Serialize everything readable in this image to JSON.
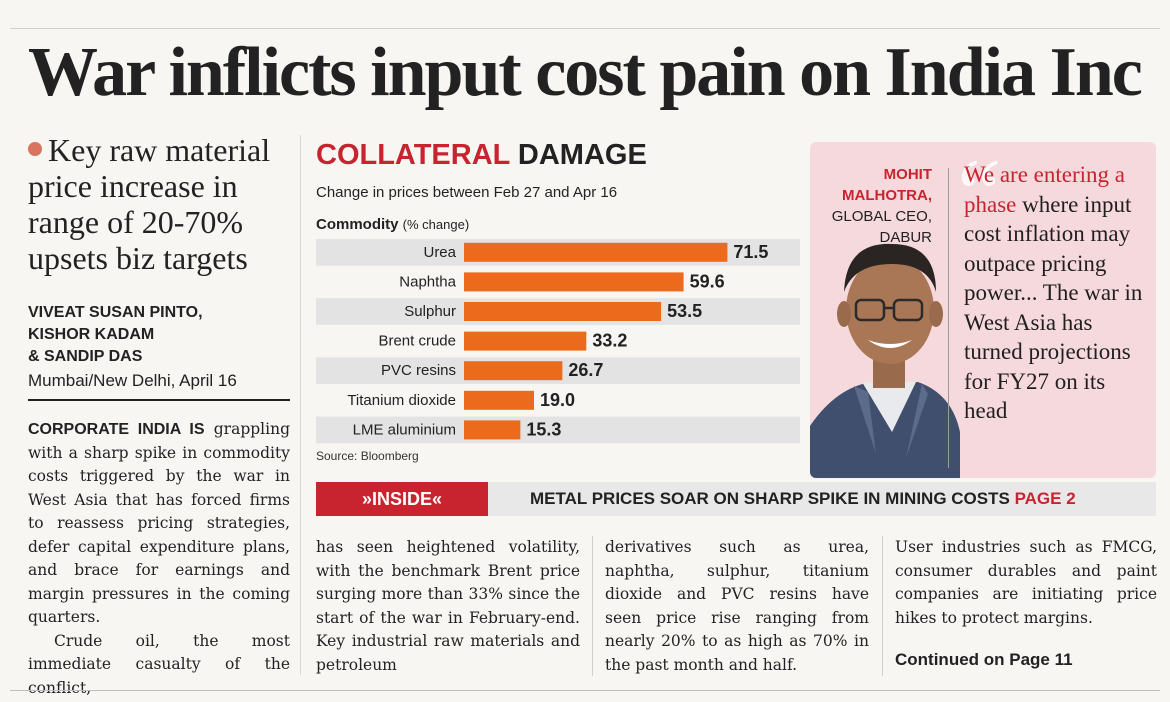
{
  "headline": "War inflicts input cost pain on India Inc",
  "deck": "Key raw material price increase in range of 20-70% upsets biz targets",
  "byline": [
    "VIVEAT SUSAN PINTO,",
    "KISHOR KADAM",
    "& SANDIP DAS"
  ],
  "dateline": "Mumbai/New Delhi, April 16",
  "chart": {
    "title_red": "COLLATERAL",
    "title_dark": "DAMAGE",
    "subtitle": "Change in prices between Feb 27 and Apr 16",
    "axis_label": "Commodity",
    "axis_unit": "(% change)",
    "source": "Source: Bloomberg"
  },
  "chart_data": {
    "type": "bar",
    "orientation": "horizontal",
    "title": "COLLATERAL DAMAGE",
    "subtitle": "Change in prices between Feb 27 and Apr 16",
    "ylabel": "Commodity (% change)",
    "categories": [
      "Urea",
      "Naphtha",
      "Sulphur",
      "Brent crude",
      "PVC resins",
      "Titanium dioxide",
      "LME aluminium"
    ],
    "values": [
      71.5,
      59.6,
      53.5,
      33.2,
      26.7,
      19.0,
      15.3
    ],
    "value_labels": [
      "71.5",
      "59.6",
      "53.5",
      "33.2",
      "26.7",
      "19.0",
      "15.3"
    ],
    "xlim": [
      0,
      76
    ],
    "bar_color": "#ec6a1c",
    "stripe_color": "#e3e3e3"
  },
  "quote": {
    "name_line1": "MOHIT",
    "name_line2": "MALHOTRA,",
    "role_line1": "GLOBAL CEO,",
    "role_line2": "DABUR",
    "highlight": "We are entering a phase",
    "text": "where input cost inflation may outpace pricing power... The war in West Asia has turned projections for FY27 on its head"
  },
  "inside": {
    "tag": "»INSIDE«",
    "text": "METAL PRICES SOAR ON SHARP SPIKE IN MINING COSTS",
    "page": "PAGE 2"
  },
  "story": {
    "lead": "CORPORATE INDIA IS",
    "col1_p1": "grappling with a sharp spike in commodity costs triggered by the war in West Asia that has forced firms to reassess pricing strategies, defer capital expenditure plans, and brace for earnings and margin pressures in the coming quarters.",
    "col1_p2": "Crude oil, the most immediate casualty of the conflict,",
    "col2": "has seen heightened volatility, with the benchmark Brent price surging more than 33% since the start of the war in February-end. Key industrial raw materials and petroleum",
    "col3": "derivatives such as urea, naphtha, sulphur, titanium dioxide and PVC resins have seen price rise ranging from nearly 20% to as high as 70% in the past month and half.",
    "col4": "User industries such as FMCG, consumer durables and paint companies are initiating price hikes to protect margins.",
    "continued": "Continued on Page 11"
  },
  "colors": {
    "accent_red": "#c8242f",
    "bar_orange": "#ec6a1c",
    "quote_bg": "#f6d9dc"
  }
}
